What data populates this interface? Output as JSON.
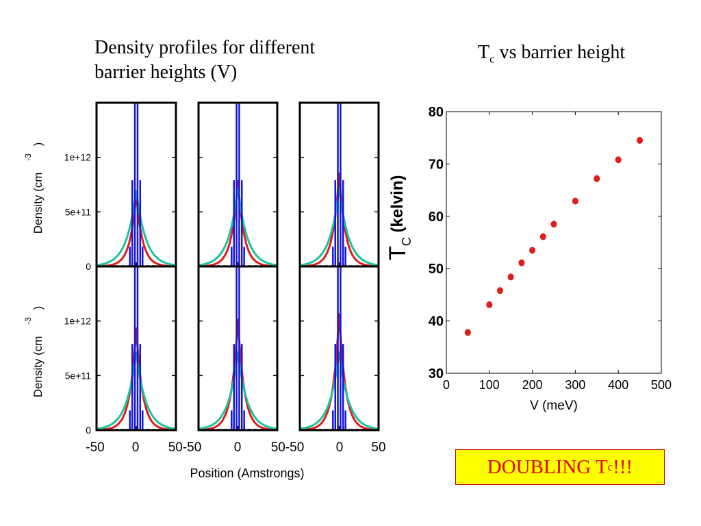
{
  "left_title_line1": "Density profiles for different",
  "left_title_line2": "barrier heights (V)",
  "right_title_main": "T",
  "right_title_sub": "c",
  "right_title_rest": " vs barrier height",
  "doubling_main": "DOUBLING T",
  "doubling_sub": "c",
  "doubling_rest": " !!!",
  "colors": {
    "wells": "#1515d8",
    "red": "#e21b1b",
    "teal": "#19c39a",
    "scatter": "#e21b1b",
    "highlight_bg": "#ffff00",
    "highlight_text": "#e00000"
  },
  "chart_data": [
    {
      "type": "line",
      "title": "Density profiles for different barrier heights (V)",
      "xlabel": "Position (Amstrongs)",
      "ylabel": "Density (cm-3)",
      "ylabel_main": "Density (cm",
      "ylabel_sup": "-3",
      "ylabel_close": ")",
      "xlim": [
        -50,
        50
      ],
      "ylim": [
        0,
        1500000000000.0
      ],
      "x_ticks": [
        "-50",
        "0",
        "50"
      ],
      "y_ticks": [
        {
          "value": 0,
          "label": "0"
        },
        {
          "value": 500000000000.0,
          "label": "5e+11"
        },
        {
          "value": 1000000000000.0,
          "label": "1e+12"
        }
      ],
      "panels": [
        {
          "teal_peak": 700000000000.0,
          "red_peak": 660000000000.0
        },
        {
          "teal_peak": 720000000000.0,
          "red_peak": 790000000000.0
        },
        {
          "teal_peak": 720000000000.0,
          "red_peak": 860000000000.0
        },
        {
          "teal_peak": 720000000000.0,
          "red_peak": 940000000000.0
        },
        {
          "teal_peak": 720000000000.0,
          "red_peak": 1020000000000.0
        },
        {
          "teal_peak": 720000000000.0,
          "red_peak": 1070000000000.0
        }
      ],
      "series": [
        {
          "color": "teal",
          "width_A": 12
        },
        {
          "color": "red",
          "width_A": 8
        },
        {
          "color": "blue",
          "wells": true
        }
      ]
    },
    {
      "type": "scatter",
      "title": "Tc vs barrier height",
      "xlabel": "V (meV)",
      "ylabel_main": "T",
      "ylabel_sub": "C",
      "ylabel_rest": " (kelvin)",
      "xlim": [
        0,
        500
      ],
      "ylim": [
        30,
        80
      ],
      "x_ticks": [
        0,
        100,
        200,
        300,
        400,
        500
      ],
      "y_ticks": [
        30,
        40,
        50,
        60,
        70,
        80
      ],
      "points": [
        [
          50,
          37.8
        ],
        [
          100,
          43.1
        ],
        [
          125,
          45.8
        ],
        [
          150,
          48.4
        ],
        [
          175,
          51.1
        ],
        [
          200,
          53.5
        ],
        [
          225,
          56.1
        ],
        [
          250,
          58.5
        ],
        [
          300,
          62.9
        ],
        [
          350,
          67.2
        ],
        [
          400,
          70.8
        ],
        [
          450,
          74.5
        ]
      ]
    }
  ]
}
